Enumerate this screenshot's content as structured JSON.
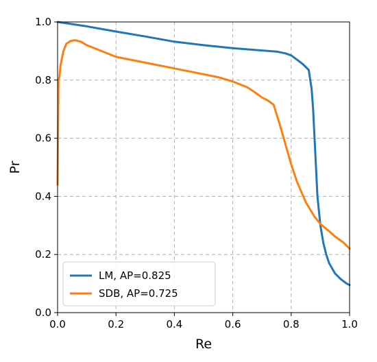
{
  "chart_data": {
    "type": "line",
    "xlabel": "Re",
    "ylabel": "Pr",
    "xlim": [
      0.0,
      1.0
    ],
    "ylim": [
      0.0,
      1.0
    ],
    "xticks": [
      "0.0",
      "0.2",
      "0.4",
      "0.6",
      "0.8",
      "1.0"
    ],
    "yticks": [
      "0.0",
      "0.2",
      "0.4",
      "0.6",
      "0.8",
      "1.0"
    ],
    "grid": true,
    "legend_position": "lower-left",
    "series": [
      {
        "name": "LM, AP=0.825",
        "color": "#1f77b4",
        "x": [
          0.0,
          0.1,
          0.2,
          0.3,
          0.4,
          0.5,
          0.6,
          0.7,
          0.75,
          0.78,
          0.8,
          0.82,
          0.84,
          0.86,
          0.87,
          0.875,
          0.88,
          0.885,
          0.89,
          0.9,
          0.91,
          0.92,
          0.93,
          0.95,
          0.97,
          0.99,
          1.0
        ],
        "y": [
          1.0,
          0.985,
          0.967,
          0.95,
          0.932,
          0.92,
          0.91,
          0.902,
          0.898,
          0.892,
          0.885,
          0.87,
          0.855,
          0.835,
          0.77,
          0.7,
          0.6,
          0.5,
          0.4,
          0.3,
          0.24,
          0.2,
          0.17,
          0.135,
          0.115,
          0.1,
          0.095
        ]
      },
      {
        "name": "SDB, AP=0.725",
        "color": "#ff7f0e",
        "x": [
          0.0,
          0.003,
          0.006,
          0.01,
          0.02,
          0.03,
          0.045,
          0.06,
          0.08,
          0.1,
          0.15,
          0.2,
          0.3,
          0.4,
          0.5,
          0.55,
          0.6,
          0.65,
          0.68,
          0.7,
          0.72,
          0.74,
          0.76,
          0.78,
          0.8,
          0.82,
          0.85,
          0.88,
          0.9,
          0.93,
          0.95,
          0.98,
          1.0
        ],
        "y": [
          0.44,
          0.8,
          0.81,
          0.85,
          0.9,
          0.925,
          0.935,
          0.937,
          0.932,
          0.92,
          0.9,
          0.88,
          0.86,
          0.84,
          0.82,
          0.81,
          0.795,
          0.775,
          0.755,
          0.74,
          0.73,
          0.715,
          0.65,
          0.58,
          0.51,
          0.45,
          0.38,
          0.33,
          0.305,
          0.28,
          0.262,
          0.24,
          0.22
        ]
      }
    ]
  }
}
